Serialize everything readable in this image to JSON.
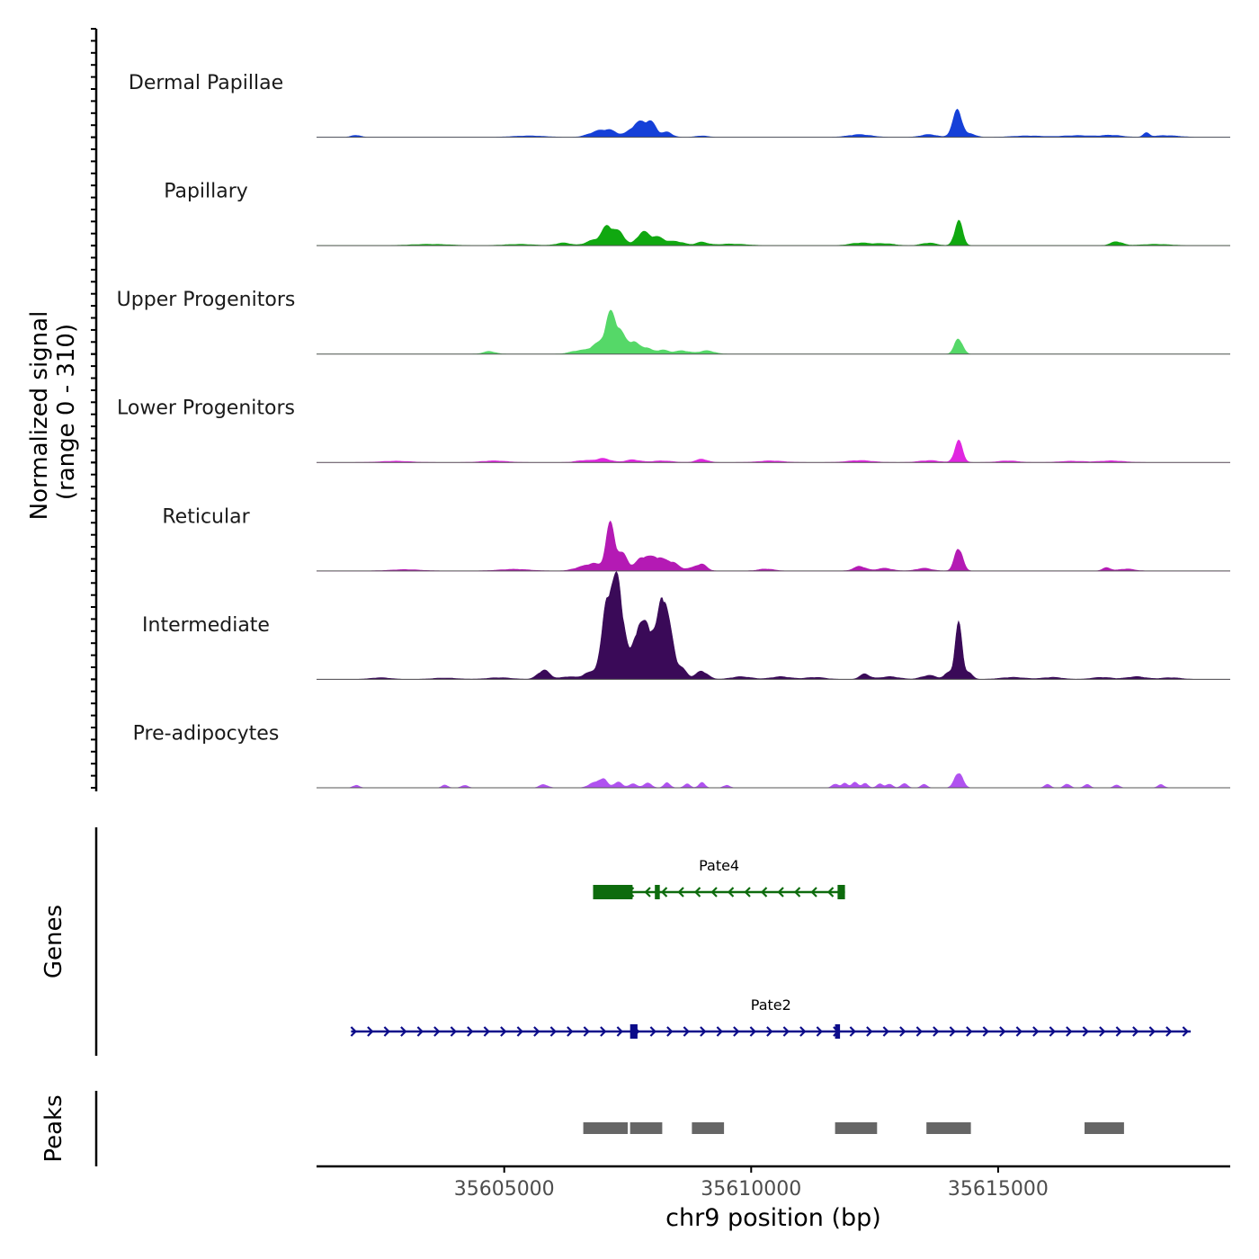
{
  "chart_data": {
    "type": "area",
    "title": "",
    "signal_axis": {
      "label_line1": "Normalized signal",
      "label_line2": "(range 0 - 310)",
      "ylim": [
        0,
        310
      ]
    },
    "tracks": [
      {
        "name": "Dermal Papillae",
        "color": "#1540d8",
        "peaks": [
          [
            35602000,
            6,
            90
          ],
          [
            35605500,
            4,
            300
          ],
          [
            35606800,
            10,
            150
          ],
          [
            35607100,
            22,
            180
          ],
          [
            35607600,
            18,
            120
          ],
          [
            35607800,
            40,
            140
          ],
          [
            35608000,
            30,
            100
          ],
          [
            35608300,
            15,
            100
          ],
          [
            35609000,
            4,
            120
          ],
          [
            35612200,
            8,
            220
          ],
          [
            35613600,
            8,
            160
          ],
          [
            35614100,
            25,
            80
          ],
          [
            35614200,
            70,
            80
          ],
          [
            35614450,
            10,
            100
          ],
          [
            35615600,
            4,
            300
          ],
          [
            35616600,
            5,
            300
          ],
          [
            35617300,
            6,
            200
          ],
          [
            35618000,
            12,
            60
          ],
          [
            35618400,
            5,
            250
          ]
        ]
      },
      {
        "name": "Papillary",
        "color": "#10a810",
        "peaks": [
          [
            35603500,
            4,
            400
          ],
          [
            35605300,
            4,
            300
          ],
          [
            35606200,
            8,
            150
          ],
          [
            35606800,
            15,
            150
          ],
          [
            35607100,
            58,
            120
          ],
          [
            35607350,
            35,
            100
          ],
          [
            35607800,
            38,
            120
          ],
          [
            35608100,
            25,
            150
          ],
          [
            35608500,
            12,
            150
          ],
          [
            35609000,
            10,
            120
          ],
          [
            35609600,
            5,
            300
          ],
          [
            35612200,
            8,
            200
          ],
          [
            35612700,
            6,
            200
          ],
          [
            35613600,
            8,
            150
          ],
          [
            35614200,
            75,
            80
          ],
          [
            35617400,
            12,
            120
          ],
          [
            35618200,
            4,
            300
          ]
        ]
      },
      {
        "name": "Upper Progenitors",
        "color": "#55d868",
        "peaks": [
          [
            35604700,
            8,
            120
          ],
          [
            35606500,
            10,
            160
          ],
          [
            35606900,
            30,
            150
          ],
          [
            35607150,
            110,
            100
          ],
          [
            35607350,
            60,
            100
          ],
          [
            35607600,
            35,
            100
          ],
          [
            35607850,
            20,
            120
          ],
          [
            35608200,
            12,
            120
          ],
          [
            35608600,
            10,
            150
          ],
          [
            35609100,
            10,
            150
          ],
          [
            35614200,
            48,
            80
          ]
        ]
      },
      {
        "name": "Lower Progenitors",
        "color": "#e026e0",
        "peaks": [
          [
            35602800,
            4,
            300
          ],
          [
            35604800,
            5,
            250
          ],
          [
            35606600,
            6,
            150
          ],
          [
            35607000,
            12,
            150
          ],
          [
            35607600,
            8,
            150
          ],
          [
            35608200,
            5,
            200
          ],
          [
            35609000,
            10,
            120
          ],
          [
            35610400,
            5,
            250
          ],
          [
            35612200,
            6,
            250
          ],
          [
            35613600,
            6,
            200
          ],
          [
            35614200,
            65,
            80
          ],
          [
            35615200,
            5,
            200
          ],
          [
            35616500,
            4,
            250
          ],
          [
            35617300,
            5,
            250
          ]
        ]
      },
      {
        "name": "Reticular",
        "color": "#b41ab4",
        "peaks": [
          [
            35603000,
            4,
            300
          ],
          [
            35605200,
            5,
            300
          ],
          [
            35606500,
            8,
            140
          ],
          [
            35606800,
            22,
            150
          ],
          [
            35607150,
            140,
            90
          ],
          [
            35607400,
            50,
            100
          ],
          [
            35607800,
            40,
            130
          ],
          [
            35608100,
            40,
            140
          ],
          [
            35608400,
            25,
            120
          ],
          [
            35608800,
            8,
            150
          ],
          [
            35609000,
            18,
            100
          ],
          [
            35610300,
            6,
            150
          ],
          [
            35612200,
            14,
            120
          ],
          [
            35612700,
            8,
            150
          ],
          [
            35613500,
            8,
            150
          ],
          [
            35614200,
            72,
            80
          ],
          [
            35617200,
            10,
            80
          ],
          [
            35617600,
            6,
            150
          ]
        ]
      },
      {
        "name": "Intermediate",
        "color": "#3a0a58",
        "peaks": [
          [
            35602500,
            5,
            200
          ],
          [
            35603800,
            4,
            250
          ],
          [
            35604900,
            5,
            250
          ],
          [
            35605800,
            28,
            120
          ],
          [
            35606300,
            8,
            150
          ],
          [
            35606700,
            18,
            120
          ],
          [
            35606950,
            45,
            100
          ],
          [
            35607100,
            230,
            90
          ],
          [
            35607280,
            220,
            90
          ],
          [
            35607400,
            120,
            100
          ],
          [
            35607700,
            150,
            100
          ],
          [
            35607900,
            140,
            90
          ],
          [
            35608050,
            80,
            80
          ],
          [
            35608200,
            210,
            80
          ],
          [
            35608350,
            130,
            100
          ],
          [
            35608600,
            30,
            100
          ],
          [
            35609000,
            25,
            120
          ],
          [
            35609800,
            8,
            200
          ],
          [
            35610600,
            8,
            200
          ],
          [
            35611300,
            6,
            200
          ],
          [
            35612300,
            16,
            100
          ],
          [
            35612800,
            8,
            200
          ],
          [
            35613600,
            12,
            150
          ],
          [
            35614000,
            20,
            80
          ],
          [
            35614200,
            165,
            70
          ],
          [
            35614400,
            20,
            80
          ],
          [
            35615300,
            6,
            250
          ],
          [
            35616100,
            6,
            200
          ],
          [
            35617100,
            6,
            200
          ],
          [
            35617800,
            8,
            200
          ],
          [
            35618500,
            5,
            200
          ]
        ]
      },
      {
        "name": "Pre-adipocytes",
        "color": "#b052f0",
        "peaks": [
          [
            35602000,
            8,
            60
          ],
          [
            35603800,
            8,
            60
          ],
          [
            35604200,
            8,
            60
          ],
          [
            35605800,
            10,
            80
          ],
          [
            35606800,
            14,
            100
          ],
          [
            35607000,
            28,
            80
          ],
          [
            35607300,
            18,
            80
          ],
          [
            35607600,
            12,
            80
          ],
          [
            35607900,
            14,
            80
          ],
          [
            35608300,
            16,
            60
          ],
          [
            35608700,
            12,
            60
          ],
          [
            35609000,
            16,
            60
          ],
          [
            35609500,
            8,
            60
          ],
          [
            35611700,
            12,
            60
          ],
          [
            35611900,
            14,
            60
          ],
          [
            35612100,
            16,
            60
          ],
          [
            35612300,
            14,
            60
          ],
          [
            35612600,
            12,
            60
          ],
          [
            35612800,
            12,
            60
          ],
          [
            35613100,
            14,
            60
          ],
          [
            35613500,
            10,
            60
          ],
          [
            35614200,
            48,
            80
          ],
          [
            35616000,
            10,
            60
          ],
          [
            35616400,
            12,
            60
          ],
          [
            35616800,
            10,
            60
          ],
          [
            35617400,
            8,
            60
          ],
          [
            35618300,
            10,
            60
          ]
        ]
      }
    ],
    "genes_axis_label": "Genes",
    "genes": [
      {
        "name": "Pate4",
        "color": "#0d6b0d",
        "strand": "-",
        "start": 35606800,
        "end": 35611900,
        "exons": [
          [
            35606800,
            35607600
          ],
          [
            35608050,
            35608150
          ],
          [
            35611750,
            35611900
          ]
        ]
      },
      {
        "name": "Pate2",
        "color": "#0c0c8a",
        "strand": "+",
        "start": 35601900,
        "end": 35618900,
        "exons": [
          [
            35607550,
            35607700
          ],
          [
            35611700,
            35611800
          ]
        ]
      }
    ],
    "peaks_axis_label": "Peaks",
    "peaks_color": "#666666",
    "peak_regions": [
      [
        35606600,
        35607500
      ],
      [
        35607550,
        35608200
      ],
      [
        35608800,
        35609450
      ],
      [
        35611700,
        35612550
      ],
      [
        35613550,
        35614450
      ],
      [
        35616750,
        35617550
      ]
    ],
    "x_axis": {
      "label": "chr9 position (bp)",
      "xlim": [
        35601200,
        35619700
      ],
      "ticks": [
        35605000,
        35610000,
        35615000
      ],
      "tick_labels": [
        "35605000",
        "35610000",
        "35615000"
      ]
    }
  }
}
